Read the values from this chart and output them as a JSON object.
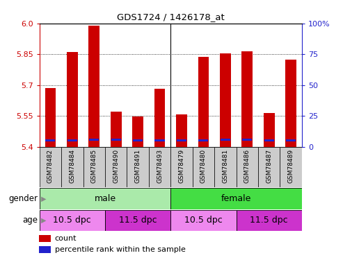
{
  "title": "GDS1724 / 1426178_at",
  "samples": [
    "GSM78482",
    "GSM78484",
    "GSM78485",
    "GSM78490",
    "GSM78491",
    "GSM78493",
    "GSM78479",
    "GSM78480",
    "GSM78481",
    "GSM78486",
    "GSM78487",
    "GSM78489"
  ],
  "counts": [
    5.685,
    5.862,
    5.988,
    5.572,
    5.549,
    5.682,
    5.558,
    5.836,
    5.853,
    5.866,
    5.564,
    5.824
  ],
  "percentile_values": [
    5.432,
    5.432,
    5.435,
    5.435,
    5.432,
    5.432,
    5.432,
    5.432,
    5.435,
    5.435,
    5.432,
    5.432
  ],
  "ymin": 5.4,
  "ymax": 6.0,
  "yticks_left": [
    5.4,
    5.55,
    5.7,
    5.85,
    6.0
  ],
  "yticks_right": [
    0,
    25,
    50,
    75,
    100
  ],
  "bar_color": "#cc0000",
  "percentile_color": "#2222cc",
  "bar_width": 0.5,
  "gender_groups": [
    {
      "label": "male",
      "start": 0,
      "end": 5,
      "color": "#aaeaaa"
    },
    {
      "label": "female",
      "start": 6,
      "end": 11,
      "color": "#44dd44"
    }
  ],
  "age_groups": [
    {
      "label": "10.5 dpc",
      "start": 0,
      "end": 2,
      "color": "#ee88ee"
    },
    {
      "label": "11.5 dpc",
      "start": 3,
      "end": 5,
      "color": "#cc33cc"
    },
    {
      "label": "10.5 dpc",
      "start": 6,
      "end": 8,
      "color": "#ee88ee"
    },
    {
      "label": "11.5 dpc",
      "start": 9,
      "end": 11,
      "color": "#cc33cc"
    }
  ],
  "label_row1": "gender",
  "label_row2": "age",
  "legend_count_label": "count",
  "legend_percentile_label": "percentile rank within the sample",
  "bg_color": "#ffffff",
  "tick_label_color_left": "#cc0000",
  "tick_label_color_right": "#2222cc",
  "plot_bg_color": "#ffffff",
  "xtick_bg_color": "#cccccc",
  "male_female_divider": 5.5
}
